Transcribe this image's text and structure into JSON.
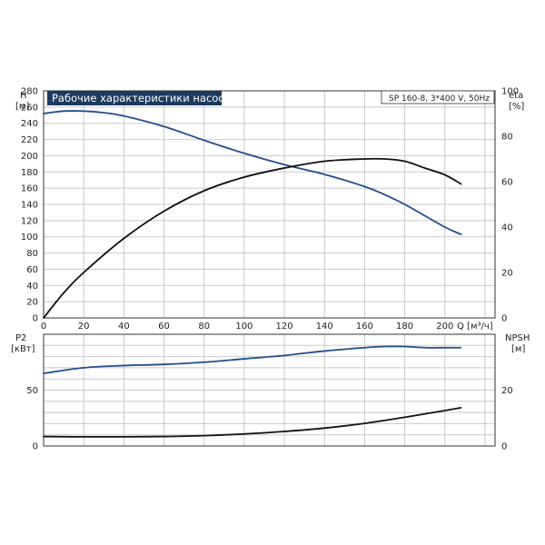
{
  "chart_data": [
    {
      "type": "line",
      "title": "Рабочие характеристики насоса",
      "subtitle": "SP 160-8, 3*400 V, 50Hz",
      "xlabel": "Q [м³/ч]",
      "ylabel": "H",
      "ylabel_unit": "[м]",
      "y2label": "eta",
      "y2label_unit": "[%]",
      "xlim": [
        0,
        225
      ],
      "ylim": [
        0,
        280
      ],
      "y2lim": [
        0,
        100
      ],
      "x_ticks": [
        0,
        20,
        40,
        60,
        80,
        100,
        120,
        140,
        160,
        180,
        200
      ],
      "y_ticks": [
        0,
        20,
        40,
        60,
        80,
        100,
        120,
        140,
        160,
        180,
        200,
        220,
        240,
        260,
        280
      ],
      "y2_ticks": [
        0,
        20,
        40,
        60,
        80,
        100
      ],
      "grid": true,
      "series": [
        {
          "axis": "left",
          "color": "#1f4e8c",
          "x": [
            0,
            10,
            20,
            30,
            40,
            60,
            80,
            100,
            120,
            140,
            160,
            170,
            180,
            190,
            200,
            208
          ],
          "y": [
            252,
            255,
            255,
            253,
            249,
            236,
            219,
            203,
            189,
            177,
            162,
            152,
            140,
            126,
            112,
            103
          ]
        },
        {
          "axis": "right",
          "color": "#111111",
          "x": [
            0,
            10,
            20,
            40,
            60,
            80,
            100,
            120,
            140,
            160,
            170,
            180,
            190,
            200,
            208
          ],
          "y": [
            0,
            11,
            20,
            35,
            47,
            56,
            62,
            66,
            69,
            70,
            70,
            69,
            66,
            63,
            59
          ]
        }
      ]
    },
    {
      "type": "line",
      "ylabel": "P2",
      "ylabel_unit": "[кВт]",
      "y2label": "NPSH",
      "y2label_unit": "[м]",
      "xlim": [
        0,
        225
      ],
      "ylim": [
        0,
        100
      ],
      "y2lim": [
        0,
        40
      ],
      "y_ticks": [
        0,
        50
      ],
      "y2_ticks": [
        0,
        20
      ],
      "grid": true,
      "series": [
        {
          "axis": "left",
          "color": "#1f4e8c",
          "x": [
            0,
            20,
            40,
            60,
            80,
            100,
            120,
            140,
            160,
            170,
            180,
            190,
            200,
            208
          ],
          "y": [
            65,
            70,
            72,
            73,
            75,
            78,
            81,
            85,
            88,
            89,
            89,
            88,
            88,
            88
          ]
        },
        {
          "axis": "right",
          "color": "#111111",
          "x": [
            0,
            15,
            40,
            60,
            80,
            100,
            120,
            140,
            160,
            180,
            200,
            208
          ],
          "y": [
            3.4,
            3.3,
            3.3,
            3.4,
            3.7,
            4.3,
            5.2,
            6.4,
            8.1,
            10.3,
            12.7,
            13.7
          ]
        }
      ]
    }
  ]
}
